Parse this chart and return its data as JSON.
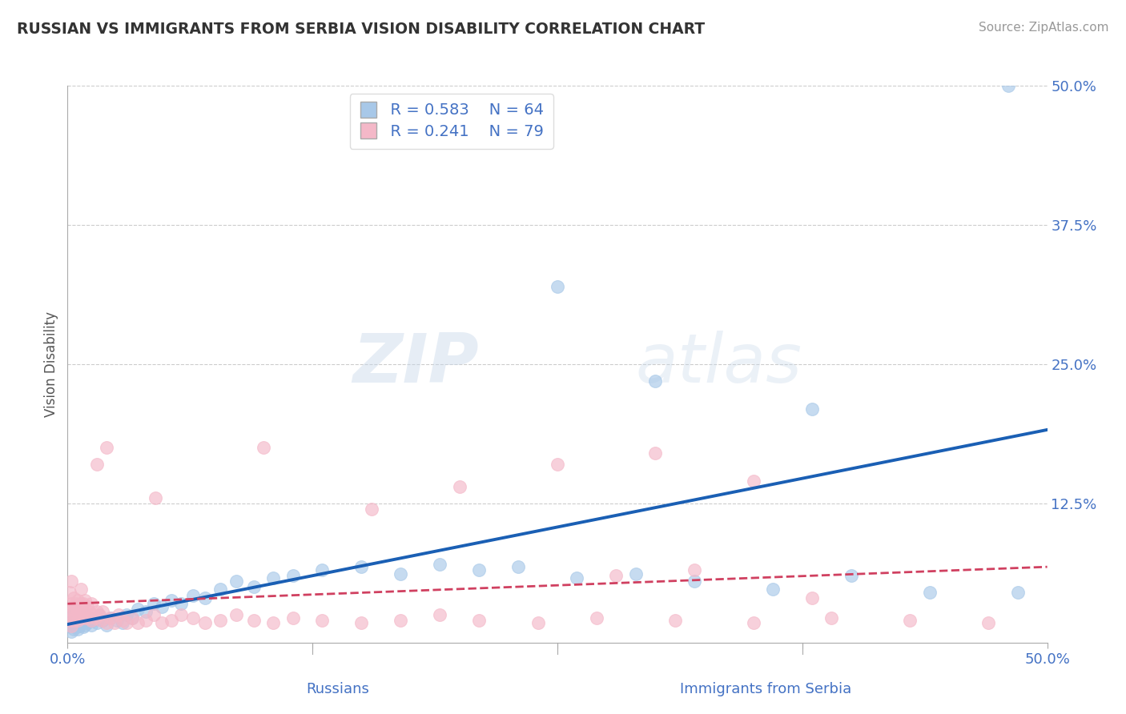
{
  "title": "RUSSIAN VS IMMIGRANTS FROM SERBIA VISION DISABILITY CORRELATION CHART",
  "source": "Source: ZipAtlas.com",
  "ylabel": "Vision Disability",
  "xlabel_russians": "Russians",
  "xlabel_serbia": "Immigrants from Serbia",
  "xlim": [
    0.0,
    0.5
  ],
  "ylim": [
    0.0,
    0.5
  ],
  "xtick_positions": [
    0.0,
    0.125,
    0.25,
    0.375,
    0.5
  ],
  "xtick_labels": [
    "0.0%",
    "",
    "",
    "",
    "50.0%"
  ],
  "ytick_positions": [
    0.0,
    0.125,
    0.25,
    0.375,
    0.5
  ],
  "ytick_labels": [
    "",
    "12.5%",
    "25.0%",
    "37.5%",
    "50.0%"
  ],
  "russian_R": 0.583,
  "russian_N": 64,
  "serbia_R": 0.241,
  "serbia_N": 79,
  "blue_color": "#a8c8e8",
  "pink_color": "#f4b8c8",
  "blue_line_color": "#1a5fb4",
  "pink_line_color": "#d04060",
  "blue_scatter_edge": "#7aaad0",
  "pink_scatter_edge": "#e890a8",
  "russians_x": [
    0.001,
    0.001,
    0.002,
    0.002,
    0.002,
    0.003,
    0.003,
    0.004,
    0.004,
    0.004,
    0.005,
    0.005,
    0.005,
    0.006,
    0.006,
    0.007,
    0.007,
    0.008,
    0.008,
    0.009,
    0.009,
    0.01,
    0.011,
    0.012,
    0.013,
    0.015,
    0.016,
    0.018,
    0.02,
    0.022,
    0.025,
    0.028,
    0.03,
    0.033,
    0.036,
    0.04,
    0.044,
    0.048,
    0.053,
    0.058,
    0.064,
    0.07,
    0.078,
    0.086,
    0.095,
    0.105,
    0.115,
    0.13,
    0.15,
    0.17,
    0.19,
    0.21,
    0.23,
    0.26,
    0.29,
    0.32,
    0.36,
    0.4,
    0.44,
    0.485,
    0.25,
    0.3,
    0.38,
    0.48
  ],
  "russians_y": [
    0.015,
    0.022,
    0.01,
    0.018,
    0.025,
    0.012,
    0.02,
    0.014,
    0.022,
    0.03,
    0.012,
    0.018,
    0.025,
    0.015,
    0.022,
    0.018,
    0.025,
    0.014,
    0.022,
    0.016,
    0.024,
    0.018,
    0.022,
    0.016,
    0.02,
    0.018,
    0.024,
    0.02,
    0.016,
    0.022,
    0.02,
    0.018,
    0.025,
    0.022,
    0.03,
    0.028,
    0.035,
    0.032,
    0.038,
    0.035,
    0.042,
    0.04,
    0.048,
    0.055,
    0.05,
    0.058,
    0.06,
    0.065,
    0.068,
    0.062,
    0.07,
    0.065,
    0.068,
    0.058,
    0.062,
    0.055,
    0.048,
    0.06,
    0.045,
    0.045,
    0.32,
    0.235,
    0.21,
    0.5
  ],
  "serbia_x": [
    0.001,
    0.001,
    0.001,
    0.002,
    0.002,
    0.002,
    0.002,
    0.003,
    0.003,
    0.003,
    0.004,
    0.004,
    0.005,
    0.005,
    0.005,
    0.006,
    0.006,
    0.007,
    0.007,
    0.007,
    0.008,
    0.008,
    0.009,
    0.009,
    0.01,
    0.01,
    0.011,
    0.012,
    0.012,
    0.013,
    0.014,
    0.015,
    0.016,
    0.017,
    0.018,
    0.02,
    0.022,
    0.024,
    0.026,
    0.028,
    0.03,
    0.033,
    0.036,
    0.04,
    0.044,
    0.048,
    0.053,
    0.058,
    0.064,
    0.07,
    0.078,
    0.086,
    0.095,
    0.105,
    0.115,
    0.13,
    0.15,
    0.17,
    0.19,
    0.21,
    0.24,
    0.27,
    0.31,
    0.35,
    0.39,
    0.43,
    0.47,
    0.045,
    0.1,
    0.155,
    0.2,
    0.25,
    0.3,
    0.35,
    0.28,
    0.32,
    0.38,
    0.02,
    0.015
  ],
  "serbia_y": [
    0.02,
    0.03,
    0.045,
    0.015,
    0.025,
    0.035,
    0.055,
    0.02,
    0.03,
    0.04,
    0.025,
    0.035,
    0.02,
    0.028,
    0.038,
    0.022,
    0.032,
    0.025,
    0.035,
    0.048,
    0.022,
    0.035,
    0.025,
    0.038,
    0.022,
    0.032,
    0.028,
    0.02,
    0.035,
    0.025,
    0.022,
    0.028,
    0.025,
    0.02,
    0.028,
    0.018,
    0.022,
    0.018,
    0.025,
    0.02,
    0.018,
    0.022,
    0.018,
    0.02,
    0.025,
    0.018,
    0.02,
    0.025,
    0.022,
    0.018,
    0.02,
    0.025,
    0.02,
    0.018,
    0.022,
    0.02,
    0.018,
    0.02,
    0.025,
    0.02,
    0.018,
    0.022,
    0.02,
    0.018,
    0.022,
    0.02,
    0.018,
    0.13,
    0.175,
    0.12,
    0.14,
    0.16,
    0.17,
    0.145,
    0.06,
    0.065,
    0.04,
    0.175,
    0.16
  ]
}
